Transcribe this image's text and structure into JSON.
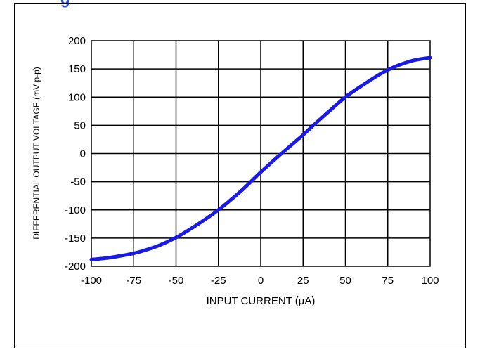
{
  "title_fragment": "g",
  "colors": {
    "curve": "#1a1ae6",
    "title": "#1f4fd6",
    "grid": "#000000"
  },
  "chart_data": {
    "type": "line",
    "title": "",
    "xlabel": "INPUT CURRENT (µA)",
    "ylabel": "DIFFERENTIAL OUTPUT VOLTAGE (mV p-p)",
    "xlim": [
      -100,
      100
    ],
    "ylim": [
      -200,
      200
    ],
    "grid": true,
    "x_ticks": [
      "-100",
      "-75",
      "-50",
      "-25",
      "0",
      "25",
      "50",
      "75",
      "100"
    ],
    "y_ticks": [
      "200",
      "150",
      "100",
      "50",
      "0",
      "-50",
      "-100",
      "-150",
      "-200"
    ],
    "series": [
      {
        "name": "",
        "x": [
          -100,
          -90,
          -80,
          -75,
          -70,
          -60,
          -50,
          -40,
          -30,
          -25,
          -20,
          -10,
          0,
          10,
          20,
          25,
          30,
          40,
          50,
          60,
          70,
          75,
          80,
          90,
          100
        ],
        "y": [
          -188,
          -185,
          -180,
          -177,
          -173,
          -163,
          -149,
          -131,
          -111,
          -100,
          -88,
          -62,
          -33,
          -6,
          20,
          33,
          47,
          74,
          100,
          121,
          140,
          148,
          155,
          165,
          170
        ]
      }
    ]
  }
}
